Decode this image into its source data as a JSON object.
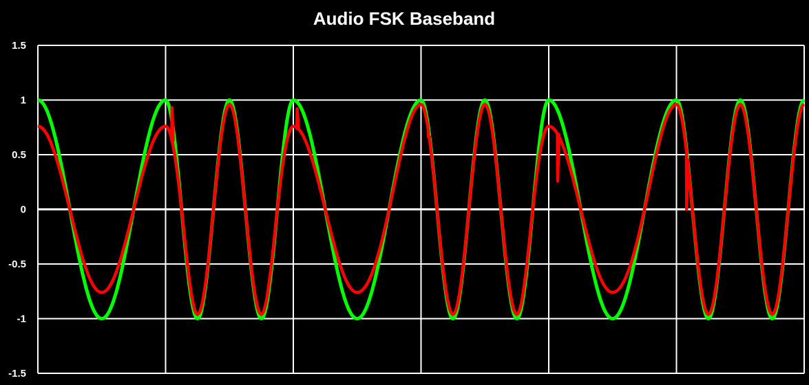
{
  "chart_data": {
    "type": "line",
    "title": "Audio FSK Baseband",
    "xlabel": "",
    "ylabel": "",
    "ylim": [
      -1.5,
      1.5
    ],
    "yticks": [
      "1.5",
      "1",
      "0.5",
      "0",
      "-0.5",
      "-1",
      "-1.5"
    ],
    "grid": true,
    "legend": "none",
    "background": "#000000",
    "gridColor": "#ffffff",
    "x_range": [
      0,
      6
    ],
    "bit_boundaries": [
      0,
      1,
      2,
      3,
      4,
      5,
      6
    ],
    "symbols": [
      {
        "x0": 0,
        "x1": 1,
        "cycles": 1
      },
      {
        "x0": 1,
        "x1": 2,
        "cycles": 2
      },
      {
        "x0": 2,
        "x1": 3,
        "cycles": 1
      },
      {
        "x0": 3,
        "x1": 4,
        "cycles": 2
      },
      {
        "x0": 4,
        "x1": 5,
        "cycles": 1
      },
      {
        "x0": 5,
        "x1": 6,
        "cycles": 2
      }
    ],
    "series": [
      {
        "color": "#00ff00",
        "kind": "ideal",
        "peaks": [
          1.0,
          -1.0,
          1.0,
          -1.0,
          1.0,
          -1.0,
          1.0,
          -1.0,
          1.0,
          -1.0,
          1.0,
          -1.0,
          1.0,
          -1.0,
          1.0,
          -1.0,
          1.0,
          -1.0,
          1.0
        ]
      },
      {
        "color": "#ff0000",
        "kind": "filtered",
        "peaks": [
          0.76,
          -0.76,
          0.76,
          -0.96,
          0.96,
          -0.96,
          0.76,
          -0.76,
          0.96,
          -0.96,
          0.96,
          -0.96,
          0.76,
          -0.76,
          0.96,
          -0.96,
          0.96,
          -0.96,
          0.96
        ],
        "glitches": [
          {
            "x": 1.05,
            "y": 0.93
          },
          {
            "x": 2.03,
            "y": 0.92
          },
          {
            "x": 3.06,
            "y": 0.66
          },
          {
            "x": 4.07,
            "y": 0.26
          },
          {
            "x": 5.08,
            "y": 0.0
          }
        ]
      }
    ]
  }
}
